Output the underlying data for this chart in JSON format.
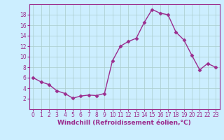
{
  "x": [
    0,
    1,
    2,
    3,
    4,
    5,
    6,
    7,
    8,
    9,
    10,
    11,
    12,
    13,
    14,
    15,
    16,
    17,
    18,
    19,
    20,
    21,
    22,
    23
  ],
  "y": [
    6,
    5.2,
    4.7,
    3.5,
    3.0,
    2.1,
    2.5,
    2.7,
    2.6,
    3.0,
    9.2,
    12.0,
    12.9,
    13.5,
    16.5,
    19.0,
    18.3,
    18.0,
    14.7,
    13.2,
    10.3,
    7.5,
    8.7,
    8.0
  ],
  "line_color": "#9b2d8e",
  "marker": "D",
  "marker_size": 2.5,
  "linewidth": 1.0,
  "xlabel": "Windchill (Refroidissement éolien,°C)",
  "xlabel_fontsize": 6.5,
  "bg_color": "#cceeff",
  "grid_color": "#aacccc",
  "ylim": [
    0,
    20
  ],
  "xlim": [
    -0.5,
    23.5
  ],
  "yticks": [
    2,
    4,
    6,
    8,
    10,
    12,
    14,
    16,
    18
  ],
  "xticks": [
    0,
    1,
    2,
    3,
    4,
    5,
    6,
    7,
    8,
    9,
    10,
    11,
    12,
    13,
    14,
    15,
    16,
    17,
    18,
    19,
    20,
    21,
    22,
    23
  ],
  "tick_fontsize": 5.5,
  "tick_color": "#9b2d8e",
  "spine_color": "#9b2d8e"
}
